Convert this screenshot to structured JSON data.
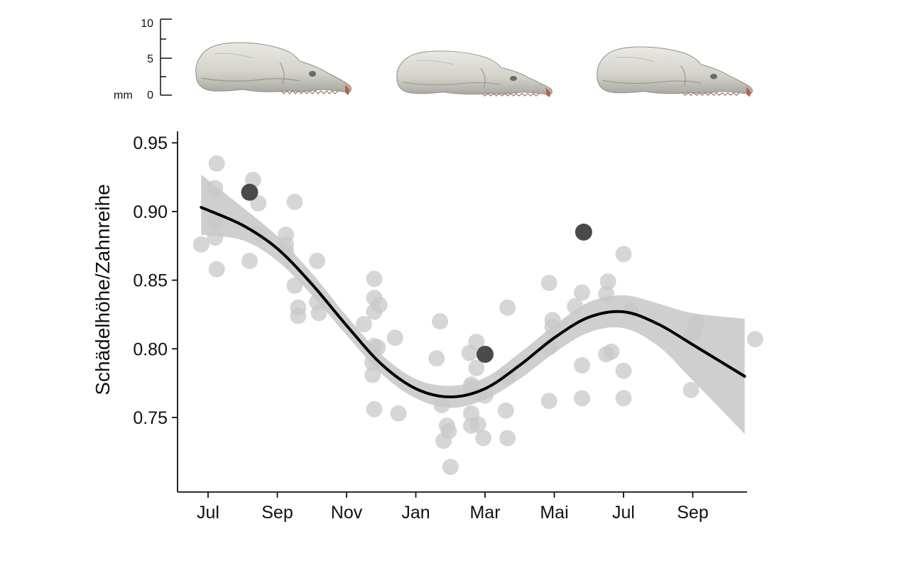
{
  "chart_data": {
    "type": "scatter",
    "title": "",
    "xlabel": "",
    "ylabel": "Schädelhöhe/Zahnreihe",
    "x_ticks": [
      "Jul",
      "Sep",
      "Nov",
      "Jan",
      "Mar",
      "Mai",
      "Jul",
      "Sep"
    ],
    "y_ticks": [
      "0.95",
      "0.90",
      "0.85",
      "0.80",
      "0.75"
    ],
    "y_tick_values": [
      0.95,
      0.9,
      0.85,
      0.8,
      0.75
    ],
    "ylim": [
      0.695,
      0.96
    ],
    "xlim": [
      -0.5,
      15.5
    ],
    "x_unit": "months since July (0 = Jul, 2 = Sep, 4 = Nov, 6 = Jan, 8 = Mar, 10 = Mai, 12 = Jul, 14 = Sep)",
    "grid": false,
    "series": [
      {
        "kind": "points-light",
        "color": "#c8c8c8",
        "points": [
          [
            -0.2,
            0.876
          ],
          [
            0.25,
            0.935
          ],
          [
            0.2,
            0.917
          ],
          [
            0.2,
            0.893
          ],
          [
            0.2,
            0.881
          ],
          [
            0.25,
            0.858
          ],
          [
            1.3,
            0.923
          ],
          [
            1.45,
            0.906
          ],
          [
            1.45,
            0.884
          ],
          [
            1.2,
            0.864
          ],
          [
            2.25,
            0.883
          ],
          [
            2.25,
            0.876
          ],
          [
            2.25,
            0.871
          ],
          [
            2.5,
            0.907
          ],
          [
            2.5,
            0.846
          ],
          [
            2.6,
            0.83
          ],
          [
            2.6,
            0.824
          ],
          [
            3.15,
            0.864
          ],
          [
            3.15,
            0.834
          ],
          [
            3.2,
            0.826
          ],
          [
            4.5,
            0.818
          ],
          [
            4.8,
            0.802
          ],
          [
            4.75,
            0.79
          ],
          [
            4.75,
            0.781
          ],
          [
            4.8,
            0.756
          ],
          [
            4.9,
            0.801
          ],
          [
            4.8,
            0.851
          ],
          [
            4.8,
            0.837
          ],
          [
            4.8,
            0.827
          ],
          [
            4.95,
            0.832
          ],
          [
            5.4,
            0.808
          ],
          [
            5.5,
            0.753
          ],
          [
            6.7,
            0.82
          ],
          [
            6.6,
            0.793
          ],
          [
            6.75,
            0.759
          ],
          [
            6.8,
            0.733
          ],
          [
            6.9,
            0.744
          ],
          [
            6.95,
            0.74
          ],
          [
            7.0,
            0.714
          ],
          [
            7.55,
            0.797
          ],
          [
            7.75,
            0.805
          ],
          [
            7.75,
            0.786
          ],
          [
            7.6,
            0.774
          ],
          [
            7.6,
            0.772
          ],
          [
            7.6,
            0.753
          ],
          [
            7.6,
            0.744
          ],
          [
            7.8,
            0.745
          ],
          [
            7.95,
            0.735
          ],
          [
            8.0,
            0.766
          ],
          [
            8.65,
            0.83
          ],
          [
            8.65,
            0.78
          ],
          [
            8.6,
            0.755
          ],
          [
            8.65,
            0.735
          ],
          [
            9.85,
            0.848
          ],
          [
            9.95,
            0.821
          ],
          [
            9.95,
            0.816
          ],
          [
            9.85,
            0.801
          ],
          [
            9.85,
            0.762
          ],
          [
            10.6,
            0.831
          ],
          [
            10.8,
            0.841
          ],
          [
            10.8,
            0.788
          ],
          [
            10.8,
            0.764
          ],
          [
            11.55,
            0.849
          ],
          [
            11.5,
            0.84
          ],
          [
            11.65,
            0.798
          ],
          [
            11.5,
            0.796
          ],
          [
            12.0,
            0.869
          ],
          [
            12.2,
            0.828
          ],
          [
            12.0,
            0.784
          ],
          [
            12.0,
            0.764
          ],
          [
            14.1,
            0.819
          ],
          [
            14.0,
            0.811
          ],
          [
            13.95,
            0.77
          ],
          [
            15.8,
            0.807
          ]
        ]
      },
      {
        "kind": "points-dark",
        "color": "#4a4a4a",
        "points": [
          [
            1.2,
            0.914
          ],
          [
            8.0,
            0.796
          ],
          [
            10.85,
            0.885
          ]
        ]
      },
      {
        "kind": "smooth-fit",
        "color": "#000000",
        "ribbon_color": "#cfcfcf",
        "x": [
          -0.2,
          1,
          2,
          3,
          4,
          5,
          6,
          7,
          8,
          9,
          10,
          11,
          12,
          13,
          14,
          15.5
        ],
        "y": [
          0.903,
          0.89,
          0.873,
          0.847,
          0.817,
          0.789,
          0.771,
          0.765,
          0.771,
          0.788,
          0.808,
          0.823,
          0.827,
          0.818,
          0.803,
          0.78
        ],
        "ci_lower": [
          0.883,
          0.879,
          0.864,
          0.839,
          0.81,
          0.782,
          0.764,
          0.757,
          0.763,
          0.778,
          0.797,
          0.812,
          0.815,
          0.802,
          0.777,
          0.738
        ],
        "ci_upper": [
          0.927,
          0.903,
          0.882,
          0.855,
          0.824,
          0.796,
          0.778,
          0.773,
          0.779,
          0.797,
          0.817,
          0.834,
          0.839,
          0.833,
          0.826,
          0.822
        ]
      }
    ]
  },
  "scale_bar": {
    "unit": "mm",
    "ticks": [
      "10",
      "5",
      "0"
    ],
    "tick_values": [
      10,
      5,
      0
    ]
  },
  "illustrations": [
    "skull-illustration",
    "skull-illustration",
    "skull-illustration"
  ]
}
